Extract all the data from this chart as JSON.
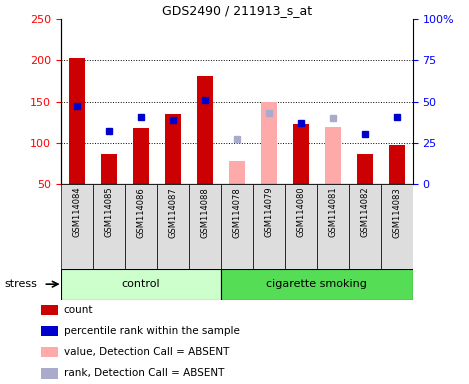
{
  "title": "GDS2490 / 211913_s_at",
  "samples": [
    "GSM114084",
    "GSM114085",
    "GSM114086",
    "GSM114087",
    "GSM114088",
    "GSM114078",
    "GSM114079",
    "GSM114080",
    "GSM114081",
    "GSM114082",
    "GSM114083"
  ],
  "control_samples": [
    "GSM114084",
    "GSM114085",
    "GSM114086",
    "GSM114087",
    "GSM114088"
  ],
  "smoking_samples": [
    "GSM114078",
    "GSM114079",
    "GSM114080",
    "GSM114081",
    "GSM114082",
    "GSM114083"
  ],
  "count": [
    203,
    87,
    118,
    135,
    181,
    null,
    null,
    123,
    null,
    87,
    98
  ],
  "percentile_rank_left": [
    145,
    115,
    131,
    128,
    152,
    null,
    null,
    124,
    null,
    111,
    131
  ],
  "value_absent": [
    null,
    null,
    null,
    null,
    null,
    78,
    150,
    null,
    120,
    null,
    null
  ],
  "rank_absent_left": [
    null,
    null,
    null,
    null,
    null,
    105,
    136,
    null,
    130,
    null,
    null
  ],
  "pct_rank_dot_present": [
    145,
    115,
    131,
    128,
    152,
    null,
    null,
    124,
    null,
    111,
    131
  ],
  "pct_rank_dot_absent": [
    null,
    null,
    null,
    null,
    null,
    105,
    136,
    null,
    130,
    null,
    null
  ],
  "left_ylim": [
    50,
    250
  ],
  "right_ylim": [
    0,
    100
  ],
  "left_yticks": [
    50,
    100,
    150,
    200,
    250
  ],
  "right_yticks": [
    0,
    25,
    50,
    75,
    100
  ],
  "right_yticklabels": [
    "0",
    "25",
    "50",
    "75",
    "100%"
  ],
  "bar_color_present": "#cc0000",
  "bar_color_absent": "#ffaaaa",
  "dot_color_present": "#0000cc",
  "dot_color_absent": "#aaaacc",
  "control_color": "#ccffcc",
  "smoking_color": "#55dd55",
  "sample_bg_color": "#dddddd",
  "legend_items": [
    {
      "label": "count",
      "color": "#cc0000"
    },
    {
      "label": "percentile rank within the sample",
      "color": "#0000cc"
    },
    {
      "label": "value, Detection Call = ABSENT",
      "color": "#ffaaaa"
    },
    {
      "label": "rank, Detection Call = ABSENT",
      "color": "#aaaacc"
    }
  ]
}
